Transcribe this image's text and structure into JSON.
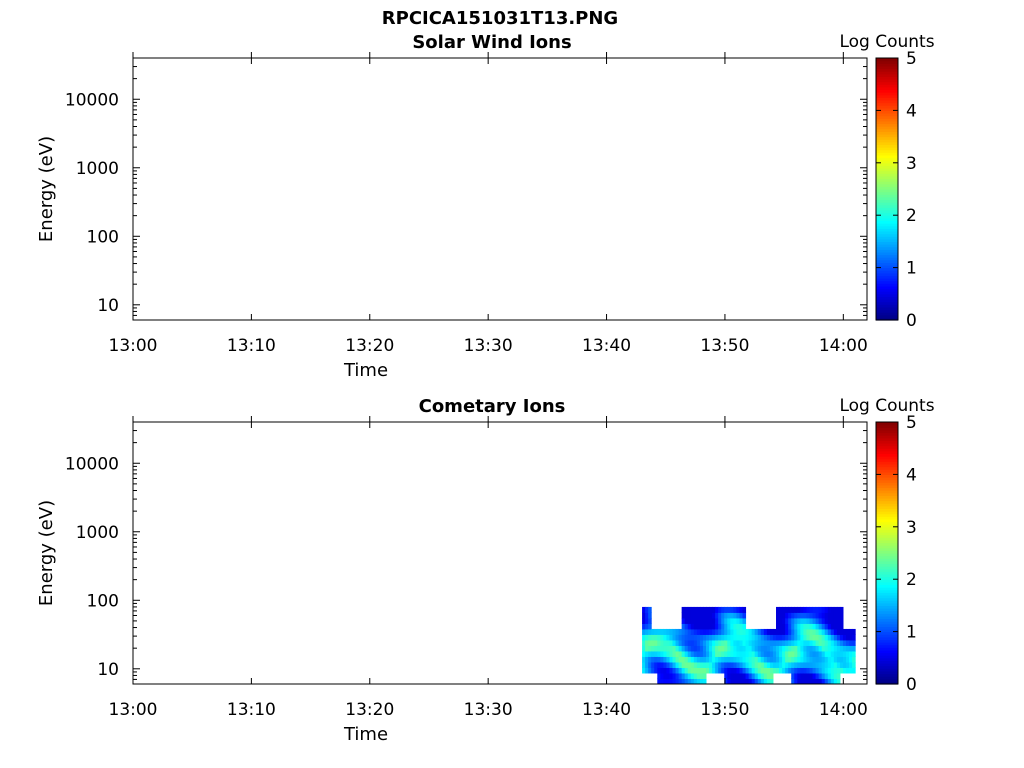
{
  "figure": {
    "suptitle": "RPCICA151031T13.PNG"
  },
  "chart_data": [
    {
      "type": "heatmap",
      "title": "Solar Wind Ions",
      "xlabel": "Time",
      "ylabel": "Energy (eV)",
      "x_ticks": [
        "13:00",
        "13:10",
        "13:20",
        "13:30",
        "13:40",
        "13:50",
        "14:00"
      ],
      "y_ticks": [
        "10",
        "100",
        "1000",
        "10000"
      ],
      "y_scale": "log",
      "ylim": [
        6,
        40000
      ],
      "xlim": [
        "13:00",
        "14:02"
      ],
      "colorbar": {
        "label": "Log Counts",
        "ticks": [
          "0",
          "1",
          "2",
          "3",
          "4",
          "5"
        ],
        "range": [
          0,
          5
        ],
        "colormap": "jet"
      },
      "data_present": false
    },
    {
      "type": "heatmap",
      "title": "Cometary Ions",
      "xlabel": "Time",
      "ylabel": "Energy (eV)",
      "x_ticks": [
        "13:00",
        "13:10",
        "13:20",
        "13:30",
        "13:40",
        "13:50",
        "14:00"
      ],
      "y_ticks": [
        "10",
        "100",
        "1000",
        "10000"
      ],
      "y_scale": "log",
      "ylim": [
        6,
        40000
      ],
      "xlim": [
        "13:00",
        "14:02"
      ],
      "colorbar": {
        "label": "Log Counts",
        "ticks": [
          "0",
          "1",
          "2",
          "3",
          "4",
          "5"
        ],
        "range": [
          0,
          5
        ],
        "colormap": "jet"
      },
      "data_present": true,
      "data_time_range": [
        "13:43",
        "14:01"
      ],
      "data_energy_range_eV": [
        6,
        80
      ],
      "approx_log_counts": "0.5 to 2.3, peak ~2.3 near 15-20 eV"
    }
  ]
}
